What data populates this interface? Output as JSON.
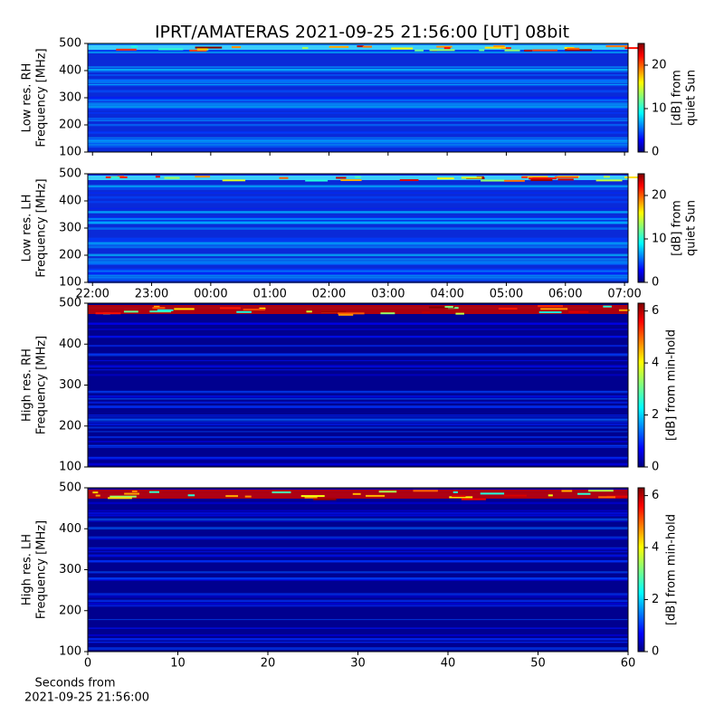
{
  "chart_data": [
    {
      "type": "spectrogram",
      "title": "IPRT/AMATERAS 2021-09-25 21:56:00 [UT]   08bit",
      "ylabel": [
        "Low res. RH",
        "Frequency [MHz]"
      ],
      "ylim": [
        100,
        500
      ],
      "yticks": [
        100,
        200,
        300,
        400,
        500
      ],
      "xlim": [
        21.92,
        31.06
      ],
      "colorbar": {
        "label": [
          "[dB] from",
          "quiet Sun"
        ],
        "lim": [
          0,
          25
        ],
        "ticks": [
          0,
          10,
          20
        ]
      }
    },
    {
      "type": "spectrogram",
      "ylabel": [
        "Low res. LH",
        "Frequency [MHz]"
      ],
      "ylim": [
        100,
        500
      ],
      "yticks": [
        100,
        200,
        300,
        400,
        500
      ],
      "xlim": [
        21.92,
        31.06
      ],
      "xticks": [
        {
          "value": 22,
          "label": "22:00"
        },
        {
          "value": 23,
          "label": "23:00"
        },
        {
          "value": 24,
          "label": "00:00"
        },
        {
          "value": 25,
          "label": "01:00"
        },
        {
          "value": 26,
          "label": "02:00"
        },
        {
          "value": 27,
          "label": "03:00"
        },
        {
          "value": 28,
          "label": "04:00"
        },
        {
          "value": 29,
          "label": "05:00"
        },
        {
          "value": 30,
          "label": "06:00"
        },
        {
          "value": 31,
          "label": "07:00"
        }
      ],
      "colorbar": {
        "label": [
          "[dB] from",
          "quiet Sun"
        ],
        "lim": [
          0,
          25
        ],
        "ticks": [
          0,
          10,
          20
        ]
      }
    },
    {
      "type": "spectrogram",
      "ylabel": [
        "High res. RH",
        "Frequency [MHz]"
      ],
      "ylim": [
        100,
        500
      ],
      "yticks": [
        100,
        200,
        300,
        400,
        500
      ],
      "xlim": [
        0,
        60
      ],
      "colorbar": {
        "label": [
          "[dB] from min-hold"
        ],
        "lim": [
          0,
          6.3
        ],
        "ticks": [
          0,
          2,
          4,
          6
        ]
      }
    },
    {
      "type": "spectrogram",
      "ylabel": [
        "High res. LH",
        "Frequency [MHz]"
      ],
      "ylim": [
        100,
        500
      ],
      "yticks": [
        100,
        200,
        300,
        400,
        500
      ],
      "xlim": [
        0,
        60
      ],
      "xticks": [
        0,
        10,
        20,
        30,
        40,
        50,
        60
      ],
      "xlabel": [
        "Seconds from",
        "2021-09-25 21:56:00"
      ],
      "colorbar": {
        "label": [
          "[dB] from min-hold"
        ],
        "lim": [
          0,
          6.3
        ],
        "ticks": [
          0,
          2,
          4,
          6
        ]
      }
    }
  ]
}
